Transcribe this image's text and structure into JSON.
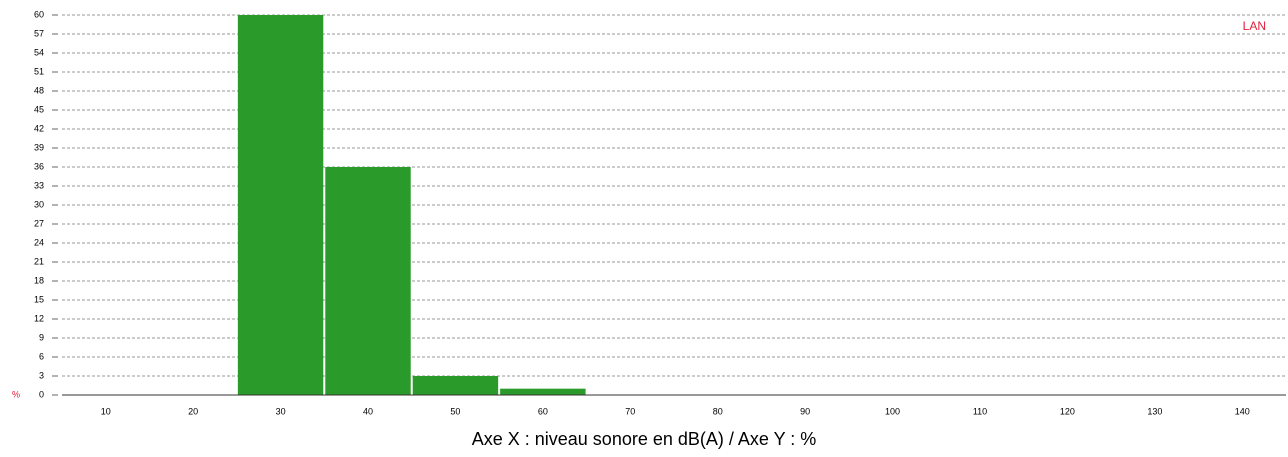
{
  "chart_data": {
    "type": "histogram",
    "xlabel": "Axe X : niveau sonore en dB(A) / Axe Y : %",
    "ylabel": "%",
    "bins": [
      25,
      35,
      45,
      55,
      65
    ],
    "series": [
      {
        "name": "LAN",
        "color": "#2a9a2a",
        "values": [
          60,
          36,
          3,
          1
        ]
      }
    ],
    "xlim": [
      5,
      145
    ],
    "xticks": [
      10,
      20,
      30,
      40,
      50,
      60,
      70,
      80,
      90,
      100,
      110,
      120,
      130,
      140
    ],
    "ylim": [
      0,
      60
    ],
    "yticks": [
      0,
      3,
      6,
      9,
      12,
      15,
      18,
      21,
      24,
      27,
      30,
      33,
      36,
      39,
      42,
      45,
      48,
      51,
      54,
      57,
      60
    ],
    "grid": true,
    "legend": "top-right"
  }
}
